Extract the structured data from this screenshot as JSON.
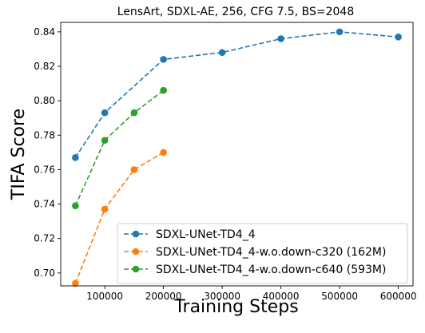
{
  "chart_data": {
    "type": "line",
    "title": "LensArt, SDXL-AE, 256, CFG 7.5, BS=2048",
    "xlabel": "Training Steps",
    "ylabel": "TIFA Score",
    "xlim": [
      25000,
      625000
    ],
    "ylim": [
      0.6925,
      0.8455
    ],
    "xticks": [
      100000,
      200000,
      300000,
      400000,
      500000,
      600000
    ],
    "yticks": [
      0.7,
      0.72,
      0.74,
      0.76,
      0.78,
      0.8,
      0.82,
      0.84
    ],
    "grid": false,
    "legend_position": "lower-right",
    "series": [
      {
        "name": "SDXL-UNet-TD4_4",
        "color": "#1f77b4",
        "x": [
          50000,
          100000,
          200000,
          300000,
          400000,
          500000,
          600000
        ],
        "y": [
          0.767,
          0.793,
          0.824,
          0.828,
          0.836,
          0.84,
          0.837
        ]
      },
      {
        "name": "SDXL-UNet-TD4_4-w.o.down-c320 (162M)",
        "color": "#ff7f0e",
        "x": [
          50000,
          100000,
          150000,
          200000
        ],
        "y": [
          0.694,
          0.737,
          0.76,
          0.77
        ]
      },
      {
        "name": "SDXL-UNet-TD4_4-w.o.down-c640 (593M)",
        "color": "#2ca02c",
        "x": [
          50000,
          100000,
          150000,
          200000
        ],
        "y": [
          0.739,
          0.777,
          0.793,
          0.806
        ]
      }
    ]
  }
}
